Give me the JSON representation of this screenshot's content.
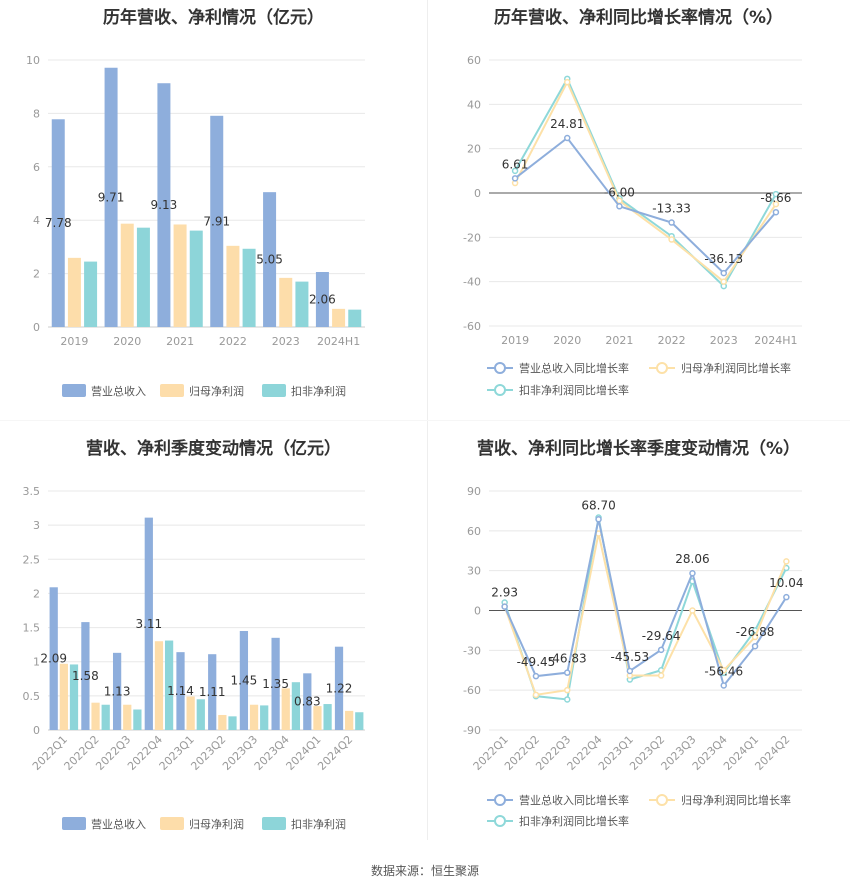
{
  "source": "数据来源：恒生聚源",
  "colors": {
    "blue": "#8eaedc",
    "orange": "#fdddaa",
    "teal": "#8dd5d9",
    "line_blue": "#8eaedc",
    "line_orange": "#fde1a8",
    "line_teal": "#8ed8d9",
    "grid": "#e8e8e8",
    "axis_text": "#999999",
    "label": "#333333"
  },
  "chart_data": [
    {
      "type": "bar",
      "title": "历年营收、净利情况（亿元）",
      "categories": [
        "2019",
        "2020",
        "2021",
        "2022",
        "2023",
        "2024H1"
      ],
      "ylim": [
        0,
        10
      ],
      "yticks": [
        0,
        2,
        4,
        6,
        8,
        10
      ],
      "series": [
        {
          "name": "营业总收入",
          "values": [
            7.78,
            9.71,
            9.13,
            7.91,
            5.05,
            2.06
          ],
          "labels": [
            "7.78",
            "9.71",
            "9.13",
            "7.91",
            "5.05",
            "2.06"
          ]
        },
        {
          "name": "归母净利润",
          "values": [
            2.59,
            3.87,
            3.84,
            3.04,
            1.84,
            0.68
          ]
        },
        {
          "name": "扣非净利润",
          "values": [
            2.45,
            3.72,
            3.61,
            2.93,
            1.7,
            0.65
          ]
        }
      ],
      "legend": "bottom"
    },
    {
      "type": "line",
      "title": "历年营收、净利同比增长率情况（%）",
      "categories": [
        "2019",
        "2020",
        "2021",
        "2022",
        "2023",
        "2024H1"
      ],
      "ylim": [
        -60,
        60
      ],
      "yticks": [
        -60,
        -40,
        -20,
        0,
        20,
        40,
        60
      ],
      "series": [
        {
          "name": "营业总收入同比增长率",
          "values": [
            6.61,
            24.81,
            -6.0,
            -13.33,
            -36.13,
            -8.66
          ],
          "labels": [
            "6.61",
            "24.81",
            "-6.00",
            "-13.33",
            "-36.13",
            "-8.66"
          ]
        },
        {
          "name": "归母净利润同比增长率",
          "values": [
            4.5,
            50.0,
            -3.5,
            -21.0,
            -40.0,
            -5.0
          ]
        },
        {
          "name": "扣非净利润同比增长率",
          "values": [
            10.0,
            51.5,
            -2.5,
            -19.5,
            -42.0,
            -0.5
          ]
        }
      ],
      "legend": "bottom"
    },
    {
      "type": "bar",
      "title": "营收、净利季度变动情况（亿元）",
      "categories": [
        "2022Q1",
        "2022Q2",
        "2022Q3",
        "2022Q4",
        "2023Q1",
        "2023Q2",
        "2023Q3",
        "2023Q4",
        "2024Q1",
        "2024Q2"
      ],
      "ylim": [
        0,
        3.5
      ],
      "yticks": [
        0,
        0.5,
        1,
        1.5,
        2,
        2.5,
        3,
        3.5
      ],
      "ytick_labels": [
        "0",
        "0.5",
        "1",
        "1.5",
        "2",
        "2.5",
        "3",
        "3.5"
      ],
      "series": [
        {
          "name": "营业总收入",
          "values": [
            2.09,
            1.58,
            1.13,
            3.11,
            1.14,
            1.11,
            1.45,
            1.35,
            0.83,
            1.22
          ],
          "labels": [
            "2.09",
            "1.58",
            "1.13",
            "3.11",
            "1.14",
            "1.11",
            "1.45",
            "1.35",
            "0.83",
            "1.22"
          ]
        },
        {
          "name": "归母净利润",
          "values": [
            0.97,
            0.4,
            0.37,
            1.3,
            0.49,
            0.22,
            0.37,
            0.61,
            0.35,
            0.28
          ]
        },
        {
          "name": "扣非净利润",
          "values": [
            0.96,
            0.37,
            0.3,
            1.31,
            0.45,
            0.2,
            0.36,
            0.7,
            0.38,
            0.26
          ]
        }
      ],
      "legend": "bottom"
    },
    {
      "type": "line",
      "title": "营收、净利同比增长率季度变动情况（%）",
      "categories": [
        "2022Q1",
        "2022Q2",
        "2022Q3",
        "2022Q4",
        "2023Q1",
        "2023Q2",
        "2023Q3",
        "2023Q4",
        "2024Q1",
        "2024Q2"
      ],
      "ylim": [
        -90,
        90
      ],
      "yticks": [
        -90,
        -60,
        -30,
        0,
        30,
        60,
        90
      ],
      "series": [
        {
          "name": "营业总收入同比增长率",
          "values": [
            2.93,
            -49.45,
            -46.83,
            68.7,
            -45.53,
            -29.64,
            28.06,
            -56.46,
            -26.88,
            10.04
          ],
          "labels": [
            "2.93",
            "-49.45",
            "-46.83",
            "68.70",
            "-45.53",
            "-29.64",
            "28.06",
            "-56.46",
            "-26.88",
            "10.04"
          ]
        },
        {
          "name": "归母净利润同比增长率",
          "values": [
            3.0,
            -63.5,
            -60.0,
            58.0,
            -49.0,
            -49.0,
            0.0,
            -45.0,
            -20.0,
            37.0
          ]
        },
        {
          "name": "扣非净利润同比增长率",
          "values": [
            6.0,
            -64.5,
            -67.0,
            70.0,
            -52.0,
            -45.0,
            22.0,
            -47.0,
            -15.0,
            32.0
          ]
        }
      ],
      "legend": "bottom"
    }
  ]
}
